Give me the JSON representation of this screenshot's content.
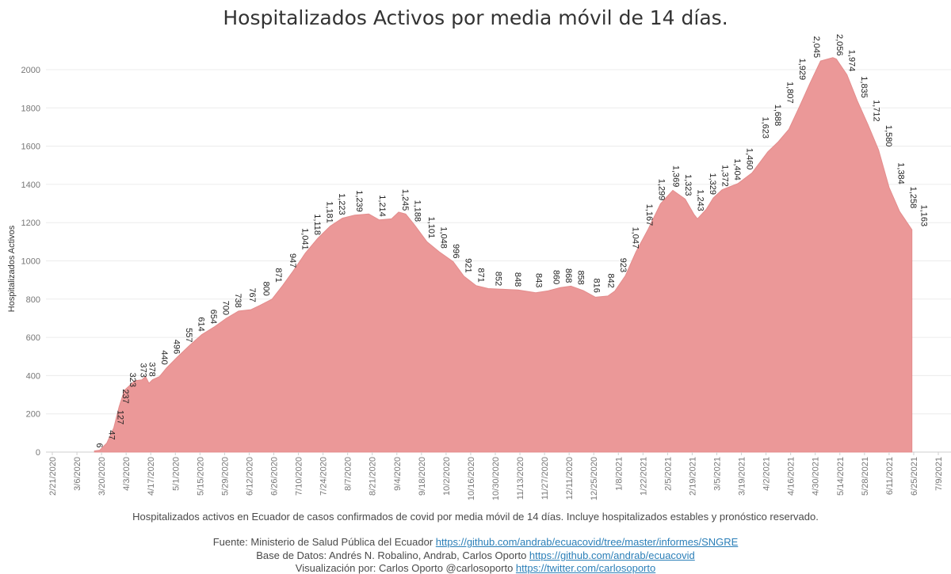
{
  "title": "Hospitalizados Activos por media móvil de 14 días.",
  "caption": "Hospitalizados activos en Ecuador de casos confirmados de covid por media móvil de 14 días. Incluye hospitalizados estables y pronóstico reservado.",
  "sources": {
    "fuente_label": "Fuente: Ministerio de Salud Pública del Ecuador ",
    "fuente_link": "https://github.com/andrab/ecuacovid/tree/master/informes/SNGRE",
    "base_label": "Base de Datos: Andrés N. Robalino, Andrab, Carlos Oporto ",
    "base_link": "https://github.com/andrab/ecuacovid",
    "viz_label": "Visualización por: Carlos Oporto @carlosoporto ",
    "viz_link": "https://twitter.com/carlosoporto"
  },
  "colors": {
    "area": "#eb9898",
    "grid": "#ececec"
  },
  "chart_data": {
    "type": "area",
    "ylabel": "Hospitalizados Activos",
    "ylim": [
      0,
      2100
    ],
    "yticks": [
      0,
      200,
      400,
      600,
      800,
      1000,
      1200,
      1400,
      1600,
      1800,
      2000
    ],
    "xticks": [
      "2/21/2020",
      "3/6/2020",
      "3/20/2020",
      "4/3/2020",
      "4/17/2020",
      "5/1/2020",
      "5/15/2020",
      "5/29/2020",
      "6/12/2020",
      "6/26/2020",
      "7/10/2020",
      "7/24/2020",
      "8/7/2020",
      "8/21/2020",
      "9/4/2020",
      "9/18/2020",
      "10/2/2020",
      "10/16/2020",
      "10/30/2020",
      "11/13/2020",
      "11/27/2020",
      "12/11/2020",
      "12/25/2020",
      "1/8/2021",
      "1/22/2021",
      "2/5/2021",
      "2/19/2021",
      "3/5/2021",
      "3/19/2021",
      "4/2/2021",
      "4/16/2021",
      "4/30/2021",
      "5/14/2021",
      "5/28/2021",
      "6/11/2021",
      "6/25/2021",
      "7/9/2021"
    ],
    "grid": true,
    "series": [
      {
        "points": [
          [
            "3/16/2020",
            6
          ],
          [
            "3/19/2020",
            10
          ],
          [
            "3/23/2020",
            47
          ],
          [
            "3/27/2020",
            127
          ],
          [
            "3/30/2020",
            237
          ],
          [
            "4/2/2020",
            323
          ],
          [
            "4/8/2020",
            373
          ],
          [
            "4/12/2020",
            378
          ],
          [
            "4/14/2020",
            395
          ],
          [
            "4/16/2020",
            360
          ],
          [
            "4/18/2020",
            378
          ],
          [
            "4/22/2020",
            395
          ],
          [
            "4/26/2020",
            440
          ],
          [
            "5/2/2020",
            496
          ],
          [
            "5/9/2020",
            557
          ],
          [
            "5/16/2020",
            614
          ],
          [
            "5/23/2020",
            654
          ],
          [
            "5/30/2020",
            700
          ],
          [
            "6/6/2020",
            738
          ],
          [
            "6/13/2020",
            745
          ],
          [
            "6/18/2020",
            767
          ],
          [
            "6/25/2020",
            800
          ],
          [
            "7/1/2020",
            871
          ],
          [
            "7/7/2020",
            947
          ],
          [
            "7/14/2020",
            1041
          ],
          [
            "7/21/2020",
            1118
          ],
          [
            "7/28/2020",
            1181
          ],
          [
            "8/4/2020",
            1223
          ],
          [
            "8/11/2020",
            1239
          ],
          [
            "8/19/2020",
            1245
          ],
          [
            "8/25/2020",
            1214
          ],
          [
            "9/1/2020",
            1220
          ],
          [
            "9/5/2020",
            1255
          ],
          [
            "9/9/2020",
            1245
          ],
          [
            "9/14/2020",
            1188
          ],
          [
            "9/21/2020",
            1101
          ],
          [
            "9/28/2020",
            1048
          ],
          [
            "10/6/2020",
            996
          ],
          [
            "10/12/2020",
            921
          ],
          [
            "10/19/2020",
            871
          ],
          [
            "10/26/2020",
            855
          ],
          [
            "11/2/2020",
            852
          ],
          [
            "11/12/2020",
            848
          ],
          [
            "11/22/2020",
            833
          ],
          [
            "11/29/2020",
            843
          ],
          [
            "12/6/2020",
            860
          ],
          [
            "12/12/2020",
            868
          ],
          [
            "12/19/2020",
            845
          ],
          [
            "12/26/2020",
            810
          ],
          [
            "1/2/2021",
            816
          ],
          [
            "1/6/2021",
            842
          ],
          [
            "1/12/2021",
            923
          ],
          [
            "1/18/2021",
            1047
          ],
          [
            "1/25/2021",
            1167
          ],
          [
            "2/1/2021",
            1299
          ],
          [
            "2/8/2021",
            1369
          ],
          [
            "2/15/2021",
            1323
          ],
          [
            "2/20/2021",
            1243
          ],
          [
            "2/22/2021",
            1220
          ],
          [
            "2/27/2021",
            1270
          ],
          [
            "3/3/2021",
            1329
          ],
          [
            "3/8/2021",
            1372
          ],
          [
            "3/17/2021",
            1404
          ],
          [
            "3/25/2021",
            1460
          ],
          [
            "4/3/2021",
            1570
          ],
          [
            "4/9/2021",
            1623
          ],
          [
            "4/15/2021",
            1688
          ],
          [
            "4/21/2021",
            1807
          ],
          [
            "4/27/2021",
            1929
          ],
          [
            "5/3/2021",
            2045
          ],
          [
            "5/10/2021",
            2063
          ],
          [
            "5/12/2021",
            2056
          ],
          [
            "5/18/2021",
            1974
          ],
          [
            "5/24/2021",
            1835
          ],
          [
            "5/30/2021",
            1712
          ],
          [
            "6/5/2021",
            1580
          ],
          [
            "6/11/2021",
            1384
          ],
          [
            "6/17/2021",
            1258
          ],
          [
            "6/24/2021",
            1163
          ]
        ]
      }
    ],
    "data_labels": [
      {
        "x": "3/19/2020",
        "y": 6,
        "text": "6"
      },
      {
        "x": "3/26/2020",
        "y": 47,
        "text": "47"
      },
      {
        "x": "3/31/2020",
        "y": 127,
        "text": "127"
      },
      {
        "x": "4/3/2020",
        "y": 237,
        "text": "237"
      },
      {
        "x": "4/7/2020",
        "y": 323,
        "text": "323"
      },
      {
        "x": "4/13/2020",
        "y": 373,
        "text": "373"
      },
      {
        "x": "4/18/2020",
        "y": 378,
        "text": "378"
      },
      {
        "x": "4/25/2020",
        "y": 440,
        "text": "440"
      },
      {
        "x": "5/2/2020",
        "y": 496,
        "text": "496"
      },
      {
        "x": "5/9/2020",
        "y": 557,
        "text": "557"
      },
      {
        "x": "5/16/2020",
        "y": 614,
        "text": "614"
      },
      {
        "x": "5/23/2020",
        "y": 654,
        "text": "654"
      },
      {
        "x": "5/30/2020",
        "y": 700,
        "text": "700"
      },
      {
        "x": "6/6/2020",
        "y": 738,
        "text": "738"
      },
      {
        "x": "6/14/2020",
        "y": 767,
        "text": "767"
      },
      {
        "x": "6/22/2020",
        "y": 800,
        "text": "800"
      },
      {
        "x": "6/29/2020",
        "y": 871,
        "text": "871"
      },
      {
        "x": "7/7/2020",
        "y": 947,
        "text": "947"
      },
      {
        "x": "7/14/2020",
        "y": 1041,
        "text": "1,041"
      },
      {
        "x": "7/21/2020",
        "y": 1118,
        "text": "1,118"
      },
      {
        "x": "7/28/2020",
        "y": 1181,
        "text": "1,181"
      },
      {
        "x": "8/4/2020",
        "y": 1223,
        "text": "1,223"
      },
      {
        "x": "8/14/2020",
        "y": 1239,
        "text": "1,239"
      },
      {
        "x": "8/27/2020",
        "y": 1214,
        "text": "1,214"
      },
      {
        "x": "9/9/2020",
        "y": 1245,
        "text": "1,245"
      },
      {
        "x": "9/16/2020",
        "y": 1188,
        "text": "1,188"
      },
      {
        "x": "9/24/2020",
        "y": 1101,
        "text": "1,101"
      },
      {
        "x": "10/1/2020",
        "y": 1048,
        "text": "1,048"
      },
      {
        "x": "10/8/2020",
        "y": 996,
        "text": "996"
      },
      {
        "x": "10/15/2020",
        "y": 921,
        "text": "921"
      },
      {
        "x": "10/22/2020",
        "y": 871,
        "text": "871"
      },
      {
        "x": "11/1/2020",
        "y": 852,
        "text": "852"
      },
      {
        "x": "11/12/2020",
        "y": 848,
        "text": "848"
      },
      {
        "x": "11/24/2020",
        "y": 843,
        "text": "843"
      },
      {
        "x": "12/4/2020",
        "y": 860,
        "text": "860"
      },
      {
        "x": "12/11/2020",
        "y": 868,
        "text": "868"
      },
      {
        "x": "12/18/2020",
        "y": 858,
        "text": "858"
      },
      {
        "x": "12/27/2020",
        "y": 816,
        "text": "816"
      },
      {
        "x": "1/4/2021",
        "y": 842,
        "text": "842"
      },
      {
        "x": "1/11/2021",
        "y": 923,
        "text": "923"
      },
      {
        "x": "1/18/2021",
        "y": 1047,
        "text": "1,047"
      },
      {
        "x": "1/26/2021",
        "y": 1167,
        "text": "1,167"
      },
      {
        "x": "2/2/2021",
        "y": 1299,
        "text": "1,299"
      },
      {
        "x": "2/10/2021",
        "y": 1369,
        "text": "1,369"
      },
      {
        "x": "2/17/2021",
        "y": 1323,
        "text": "1,323"
      },
      {
        "x": "2/24/2021",
        "y": 1243,
        "text": "1,243"
      },
      {
        "x": "3/3/2021",
        "y": 1329,
        "text": "1,329"
      },
      {
        "x": "3/10/2021",
        "y": 1372,
        "text": "1,372"
      },
      {
        "x": "3/17/2021",
        "y": 1404,
        "text": "1,404"
      },
      {
        "x": "3/24/2021",
        "y": 1460,
        "text": "1,460"
      },
      {
        "x": "4/2/2021",
        "y": 1623,
        "text": "1,623"
      },
      {
        "x": "4/9/2021",
        "y": 1688,
        "text": "1,688"
      },
      {
        "x": "4/16/2021",
        "y": 1807,
        "text": "1,807"
      },
      {
        "x": "4/23/2021",
        "y": 1929,
        "text": "1,929"
      },
      {
        "x": "5/1/2021",
        "y": 2045,
        "text": "2,045"
      },
      {
        "x": "5/14/2021",
        "y": 2056,
        "text": "2,056"
      },
      {
        "x": "5/21/2021",
        "y": 1974,
        "text": "1,974"
      },
      {
        "x": "5/28/2021",
        "y": 1835,
        "text": "1,835"
      },
      {
        "x": "6/4/2021",
        "y": 1712,
        "text": "1,712"
      },
      {
        "x": "6/11/2021",
        "y": 1580,
        "text": "1,580"
      },
      {
        "x": "6/18/2021",
        "y": 1384,
        "text": "1,384"
      },
      {
        "x": "6/25/2021",
        "y": 1258,
        "text": "1,258"
      },
      {
        "x": "7/1/2021",
        "y": 1163,
        "text": "1,163"
      }
    ]
  }
}
